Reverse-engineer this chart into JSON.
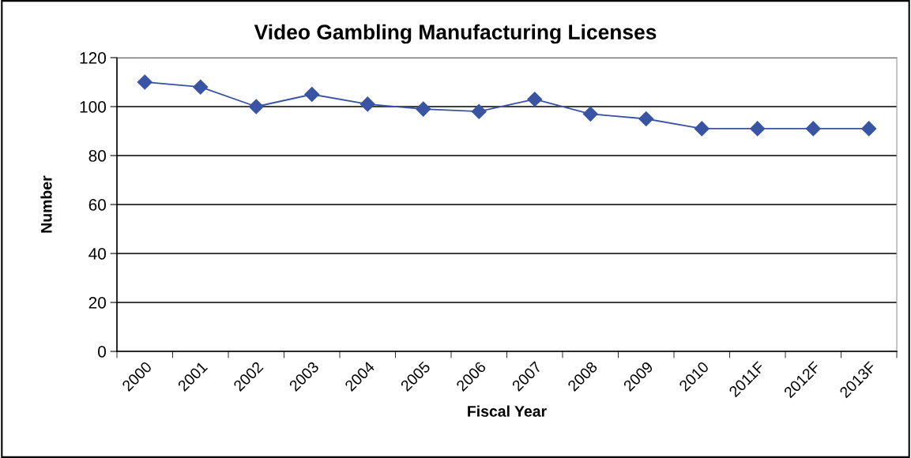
{
  "chart_data": {
    "type": "line",
    "title": "Video Gambling Manufacturing Licenses",
    "xlabel": "Fiscal Year",
    "ylabel": "Number",
    "categories": [
      "2000",
      "2001",
      "2002",
      "2003",
      "2004",
      "2005",
      "2006",
      "2007",
      "2008",
      "2009",
      "2010",
      "2011F",
      "2012F",
      "2013F"
    ],
    "series": [
      {
        "color": "#3a54a4",
        "values": [
          110,
          108,
          100,
          105,
          101,
          99,
          98,
          103,
          97,
          95,
          91,
          91,
          91,
          91
        ]
      }
    ],
    "ylim": [
      0,
      120
    ],
    "yticks": [
      0,
      20,
      40,
      60,
      80,
      100,
      120
    ],
    "grid": "y",
    "marker": "diamond",
    "line_style": "solid",
    "legend": false
  }
}
